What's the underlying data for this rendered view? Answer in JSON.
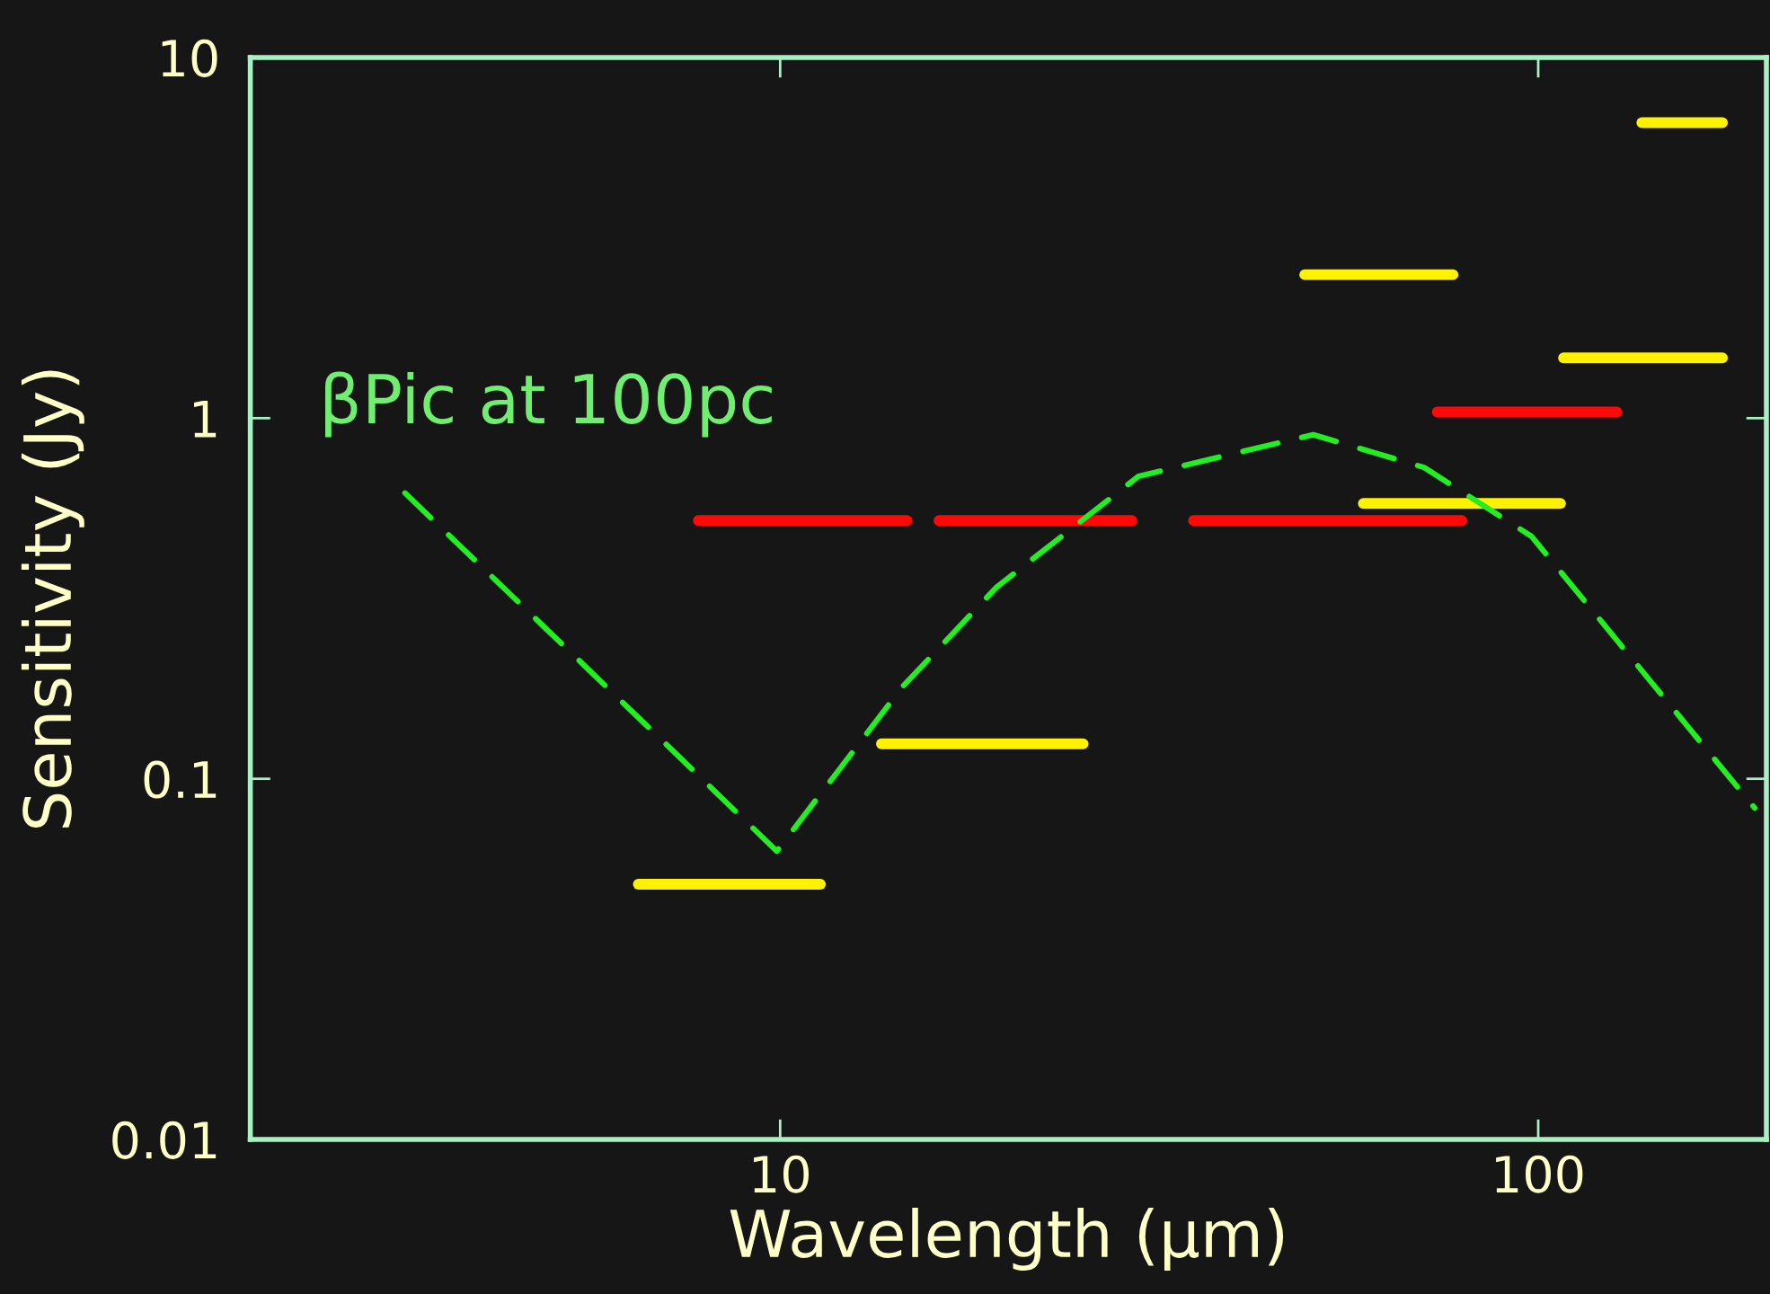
{
  "chart_data": {
    "type": "line",
    "xlabel": "Wavelength (μm)",
    "ylabel": "Sensitivity (Jy)",
    "log": "xy",
    "xlim": [
      2,
      200
    ],
    "xticks": [
      10,
      100
    ],
    "ylim": [
      0.01,
      10
    ],
    "yticks": [
      0.01,
      0.1,
      1,
      10
    ],
    "series": [
      {
        "color": "#fff200",
        "line_style": "solid",
        "x": [
          6.5,
          11.3
        ],
        "values": [
          0.051,
          0.051
        ]
      },
      {
        "color": "#fff200",
        "line_style": "solid",
        "x": [
          13.6,
          25.1
        ],
        "values": [
          0.125,
          0.125
        ]
      },
      {
        "color": "#fff200",
        "line_style": "solid",
        "x": [
          49.2,
          77.2
        ],
        "values": [
          2.5,
          2.5
        ]
      },
      {
        "color": "#fff200",
        "line_style": "solid",
        "x": [
          58.8,
          107
        ],
        "values": [
          0.58,
          0.58
        ]
      },
      {
        "color": "#fff200",
        "line_style": "solid",
        "x": [
          108,
          175
        ],
        "values": [
          1.47,
          1.47
        ]
      },
      {
        "color": "#fff200",
        "line_style": "solid",
        "x": [
          137,
          175
        ],
        "values": [
          6.6,
          6.6
        ]
      },
      {
        "color": "#ff0808",
        "line_style": "solid",
        "x": [
          7.8,
          14.7
        ],
        "values": [
          0.52,
          0.52
        ]
      },
      {
        "color": "#ff0808",
        "line_style": "solid",
        "x": [
          16.2,
          29.1
        ],
        "values": [
          0.52,
          0.52
        ]
      },
      {
        "color": "#ff0808",
        "line_style": "solid",
        "x": [
          35.1,
          79.3
        ],
        "values": [
          0.52,
          0.52
        ]
      },
      {
        "color": "#ff0808",
        "line_style": "solid",
        "x": [
          73.6,
          127
        ],
        "values": [
          1.04,
          1.04
        ]
      },
      {
        "name": "βPic at 100pc",
        "color": "#22ee22",
        "line_style": "dashed",
        "x": [
          3.2,
          6.8,
          9.9,
          14.5,
          19.3,
          29.7,
          50.5,
          70.7,
          98,
          193
        ],
        "values": [
          0.62,
          0.135,
          0.063,
          0.18,
          0.34,
          0.69,
          0.9,
          0.73,
          0.47,
          0.083
        ]
      }
    ]
  }
}
